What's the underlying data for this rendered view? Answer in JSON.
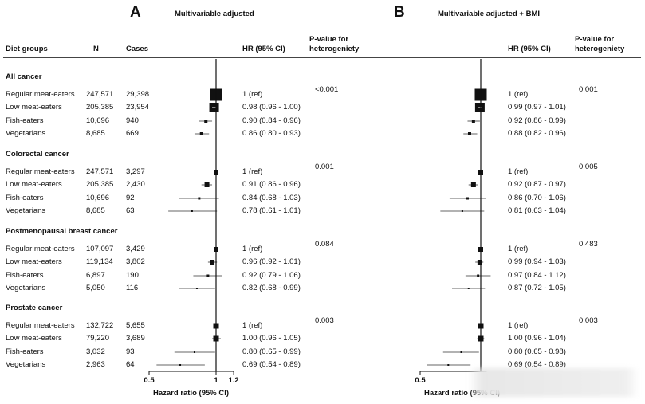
{
  "panels": [
    {
      "letter": "A",
      "title": "Multivariable adjusted",
      "xlabel": "Hazard ratio (95% CI)",
      "ticks": [
        "0.5",
        "1",
        "1.2"
      ]
    },
    {
      "letter": "B",
      "title": "Multivariable adjusted + BMI",
      "xlabel": "Hazard ratio (95% CI)",
      "ticks": [
        "0.5"
      ]
    }
  ],
  "headers": {
    "diet_groups": "Diet groups",
    "n": "N",
    "cases": "Cases",
    "hr": "HR (95% CI)",
    "pval_1": "P-value for",
    "pval_2": "heterogeniety"
  },
  "chart_data": [
    {
      "type": "forest",
      "title": "Multivariable adjusted",
      "xlabel": "Hazard ratio (95% CI)",
      "x_ticks": [
        0.5,
        1,
        1.2
      ],
      "reference_line": 1,
      "sections": [
        {
          "name": "All cancer",
          "p_value": "<0.001",
          "rows": [
            {
              "group": "Regular meat-eaters",
              "n": "247,571",
              "cases": "29,398",
              "hr": 1.0,
              "lo": 1.0,
              "hi": 1.0,
              "text": "1 (ref)"
            },
            {
              "group": "Low meat-eaters",
              "n": "205,385",
              "cases": "23,954",
              "hr": 0.98,
              "lo": 0.96,
              "hi": 1.0,
              "text": "0.98 (0.96 - 1.00)"
            },
            {
              "group": "Fish-eaters",
              "n": "10,696",
              "cases": "940",
              "hr": 0.9,
              "lo": 0.84,
              "hi": 0.96,
              "text": "0.90 (0.84 - 0.96)"
            },
            {
              "group": "Vegetarians",
              "n": "8,685",
              "cases": "669",
              "hr": 0.86,
              "lo": 0.8,
              "hi": 0.93,
              "text": "0.86 (0.80 - 0.93)"
            }
          ]
        },
        {
          "name": "Colorectal cancer",
          "p_value": "0.001",
          "rows": [
            {
              "group": "Regular meat-eaters",
              "n": "247,571",
              "cases": "3,297",
              "hr": 1.0,
              "lo": 1.0,
              "hi": 1.0,
              "text": "1 (ref)"
            },
            {
              "group": "Low meat-eaters",
              "n": "205,385",
              "cases": "2,430",
              "hr": 0.91,
              "lo": 0.86,
              "hi": 0.96,
              "text": "0.91 (0.86 - 0.96)"
            },
            {
              "group": "Fish-eaters",
              "n": "10,696",
              "cases": "92",
              "hr": 0.84,
              "lo": 0.68,
              "hi": 1.03,
              "text": "0.84 (0.68 - 1.03)"
            },
            {
              "group": "Vegetarians",
              "n": "8,685",
              "cases": "63",
              "hr": 0.78,
              "lo": 0.61,
              "hi": 1.01,
              "text": "0.78 (0.61 - 1.01)"
            }
          ]
        },
        {
          "name": "Postmenopausal breast cancer",
          "p_value": "0.084",
          "rows": [
            {
              "group": "Regular meat-eaters",
              "n": "107,097",
              "cases": "3,429",
              "hr": 1.0,
              "lo": 1.0,
              "hi": 1.0,
              "text": "1 (ref)"
            },
            {
              "group": "Low meat-eaters",
              "n": "119,134",
              "cases": "3,802",
              "hr": 0.96,
              "lo": 0.92,
              "hi": 1.01,
              "text": "0.96 (0.92 - 1.01)"
            },
            {
              "group": "Fish-eaters",
              "n": "6,897",
              "cases": "190",
              "hr": 0.92,
              "lo": 0.79,
              "hi": 1.06,
              "text": "0.92 (0.79 - 1.06)"
            },
            {
              "group": "Vegetarians",
              "n": "5,050",
              "cases": "116",
              "hr": 0.82,
              "lo": 0.68,
              "hi": 0.99,
              "text": "0.82 (0.68 - 0.99)"
            }
          ]
        },
        {
          "name": "Prostate cancer",
          "p_value": "0.003",
          "rows": [
            {
              "group": "Regular meat-eaters",
              "n": "132,722",
              "cases": "5,655",
              "hr": 1.0,
              "lo": 1.0,
              "hi": 1.0,
              "text": "1 (ref)"
            },
            {
              "group": "Low meat-eaters",
              "n": "79,220",
              "cases": "3,689",
              "hr": 1.0,
              "lo": 0.96,
              "hi": 1.05,
              "text": "1.00 (0.96 - 1.05)"
            },
            {
              "group": "Fish-eaters",
              "n": "3,032",
              "cases": "93",
              "hr": 0.8,
              "lo": 0.65,
              "hi": 0.99,
              "text": "0.80 (0.65 - 0.99)"
            },
            {
              "group": "Vegetarians",
              "n": "2,963",
              "cases": "64",
              "hr": 0.69,
              "lo": 0.54,
              "hi": 0.89,
              "text": "0.69 (0.54 - 0.89)"
            }
          ]
        }
      ]
    },
    {
      "type": "forest",
      "title": "Multivariable adjusted + BMI",
      "xlabel": "Hazard ratio (95% CI)",
      "x_ticks": [
        0.5
      ],
      "reference_line": 1,
      "sections": [
        {
          "name": "All cancer",
          "p_value": "0.001",
          "rows": [
            {
              "hr": 1.0,
              "lo": 1.0,
              "hi": 1.0,
              "text": "1 (ref)"
            },
            {
              "hr": 0.99,
              "lo": 0.97,
              "hi": 1.01,
              "text": "0.99 (0.97 - 1.01)"
            },
            {
              "hr": 0.92,
              "lo": 0.86,
              "hi": 0.99,
              "text": "0.92 (0.86 - 0.99)"
            },
            {
              "hr": 0.88,
              "lo": 0.82,
              "hi": 0.96,
              "text": "0.88 (0.82 - 0.96)"
            }
          ]
        },
        {
          "name": "Colorectal cancer",
          "p_value": "0.005",
          "rows": [
            {
              "hr": 1.0,
              "lo": 1.0,
              "hi": 1.0,
              "text": "1 (ref)"
            },
            {
              "hr": 0.92,
              "lo": 0.87,
              "hi": 0.97,
              "text": "0.92 (0.87 - 0.97)"
            },
            {
              "hr": 0.86,
              "lo": 0.7,
              "hi": 1.06,
              "text": "0.86 (0.70 - 1.06)"
            },
            {
              "hr": 0.81,
              "lo": 0.63,
              "hi": 1.04,
              "text": "0.81 (0.63 - 1.04)"
            }
          ]
        },
        {
          "name": "Postmenopausal breast cancer",
          "p_value": "0.483",
          "rows": [
            {
              "hr": 1.0,
              "lo": 1.0,
              "hi": 1.0,
              "text": "1 (ref)"
            },
            {
              "hr": 0.99,
              "lo": 0.94,
              "hi": 1.03,
              "text": "0.99 (0.94 - 1.03)"
            },
            {
              "hr": 0.97,
              "lo": 0.84,
              "hi": 1.12,
              "text": "0.97 (0.84 - 1.12)"
            },
            {
              "hr": 0.87,
              "lo": 0.72,
              "hi": 1.05,
              "text": "0.87 (0.72 - 1.05)"
            }
          ]
        },
        {
          "name": "Prostate cancer",
          "p_value": "0.003",
          "rows": [
            {
              "hr": 1.0,
              "lo": 1.0,
              "hi": 1.0,
              "text": "1 (ref)"
            },
            {
              "hr": 1.0,
              "lo": 0.96,
              "hi": 1.04,
              "text": "1.00 (0.96 - 1.04)"
            },
            {
              "hr": 0.8,
              "lo": 0.65,
              "hi": 0.98,
              "text": "0.80 (0.65 - 0.98)"
            },
            {
              "hr": 0.69,
              "lo": 0.54,
              "hi": 0.89,
              "text": "0.69 (0.54 - 0.89)"
            }
          ]
        }
      ]
    }
  ]
}
